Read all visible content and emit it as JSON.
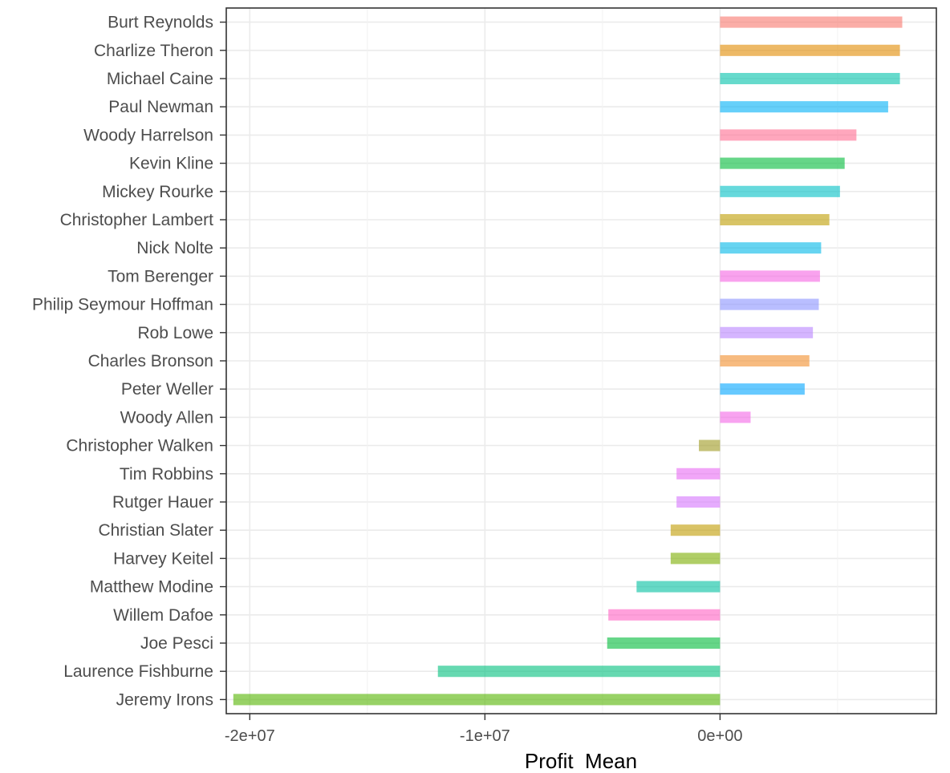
{
  "chart_data": {
    "type": "bar",
    "orientation": "horizontal",
    "title": "",
    "xlabel": "Profit  Mean",
    "ylabel": "",
    "xlim": [
      -21000000,
      9200000
    ],
    "x_ticks": [
      {
        "value": -20000000,
        "label": "-2e+07"
      },
      {
        "value": -10000000,
        "label": "-1e+07"
      },
      {
        "value": 0,
        "label": "0e+00"
      }
    ],
    "x_minor_gridlines": [
      -15000000,
      -5000000,
      5000000
    ],
    "grid": true,
    "legend": "none",
    "categories": [
      "Burt Reynolds",
      "Charlize Theron",
      "Michael Caine",
      "Paul Newman",
      "Woody Harrelson",
      "Kevin Kline",
      "Mickey Rourke",
      "Christopher Lambert",
      "Nick Nolte",
      "Tom Berenger",
      "Philip Seymour Hoffman",
      "Rob Lowe",
      "Charles Bronson",
      "Peter Weller",
      "Woody Allen",
      "Christopher Walken",
      "Tim Robbins",
      "Rutger Hauer",
      "Christian Slater",
      "Harvey Keitel",
      "Matthew Modine",
      "Willem Dafoe",
      "Joe Pesci",
      "Laurence Fishburne",
      "Jeremy Irons"
    ],
    "values": [
      7750000,
      7650000,
      7650000,
      7150000,
      5800000,
      5300000,
      5100000,
      4650000,
      4300000,
      4250000,
      4200000,
      3950000,
      3800000,
      3600000,
      1300000,
      -900000,
      -1850000,
      -1850000,
      -2100000,
      -2100000,
      -3550000,
      -4750000,
      -4800000,
      -12000000,
      -20700000
    ],
    "colors": [
      "#F8766D",
      "#E18A00",
      "#00C1AA",
      "#00B0F6",
      "#FF6C91",
      "#00BA38",
      "#00BFC4",
      "#BE9C00",
      "#00B8E7",
      "#F564E3",
      "#8B93FF",
      "#B983FF",
      "#F28E2B",
      "#00A5FF",
      "#F365E6",
      "#9E9A20",
      "#E76BF3",
      "#D575FE",
      "#C09B00",
      "#7CAE00",
      "#00BFA0",
      "#FF61C3",
      "#00BA38",
      "#00BF7D",
      "#53B400"
    ]
  }
}
